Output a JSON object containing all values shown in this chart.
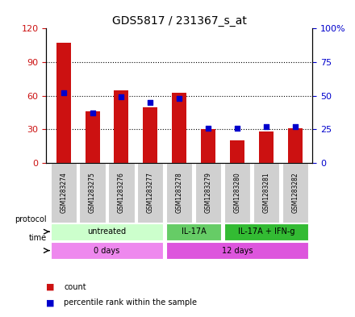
{
  "title": "GDS5817 / 231367_s_at",
  "samples": [
    "GSM1283274",
    "GSM1283275",
    "GSM1283276",
    "GSM1283277",
    "GSM1283278",
    "GSM1283279",
    "GSM1283280",
    "GSM1283281",
    "GSM1283282"
  ],
  "counts": [
    107,
    46,
    65,
    50,
    63,
    30,
    20,
    28,
    31
  ],
  "percentiles": [
    52,
    37,
    49,
    45,
    48,
    26,
    26,
    27,
    27
  ],
  "ylim_left": [
    0,
    120
  ],
  "ylim_right": [
    0,
    100
  ],
  "yticks_left": [
    0,
    30,
    60,
    90,
    120
  ],
  "yticks_right": [
    0,
    25,
    50,
    75,
    100
  ],
  "ytick_labels_left": [
    "0",
    "30",
    "60",
    "90",
    "120"
  ],
  "ytick_labels_right": [
    "0",
    "25",
    "50",
    "75",
    "100%"
  ],
  "bar_color": "#cc1111",
  "dot_color": "#0000cc",
  "protocol_groups": [
    {
      "label": "untreated",
      "start": 0,
      "end": 4,
      "color": "#ccffcc"
    },
    {
      "label": "IL-17A",
      "start": 4,
      "end": 6,
      "color": "#66cc66"
    },
    {
      "label": "IL-17A + IFN-g",
      "start": 6,
      "end": 9,
      "color": "#33bb33"
    }
  ],
  "time_groups": [
    {
      "label": "0 days",
      "start": 0,
      "end": 4,
      "color": "#ee88ee"
    },
    {
      "label": "12 days",
      "start": 4,
      "end": 9,
      "color": "#dd55dd"
    }
  ],
  "legend_count_color": "#cc1111",
  "legend_dot_color": "#0000cc",
  "tick_color_left": "#cc1111",
  "tick_color_right": "#0000cc",
  "gray_color": "#d0d0d0"
}
